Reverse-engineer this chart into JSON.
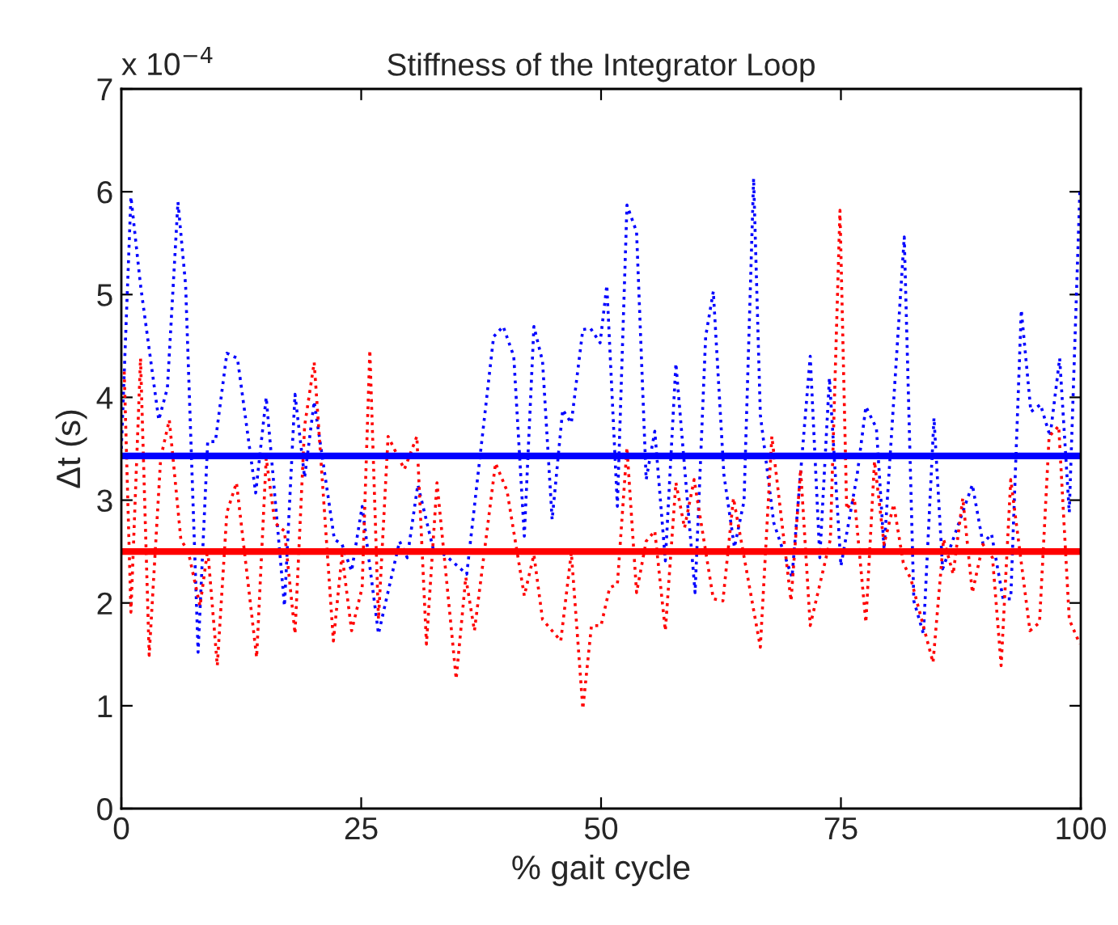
{
  "chart_data": {
    "type": "line",
    "title": "Stiffness of the Integrator Loop",
    "xlabel": "% gait cycle",
    "ylabel": "Δt (s)",
    "annotations": [
      "x 10$^{−4}$"
    ],
    "xlim": [
      0,
      100
    ],
    "xticks": [
      0,
      25,
      50,
      75,
      100
    ],
    "ylim": [
      0,
      7
    ],
    "yticks": [
      0,
      1,
      2,
      3,
      4,
      5,
      6,
      7
    ],
    "grid": false,
    "legend": false,
    "marker": "none",
    "series": [
      {
        "color": "#0000ff",
        "line_style": "dotted",
        "x": [
          0,
          1.0,
          2.0,
          3.9,
          4.8,
          5.9,
          6.7,
          8.0,
          9.0,
          9.8,
          11.0,
          12.1,
          14.0,
          15.1,
          17.0,
          18.1,
          19.1,
          20.1,
          22.2,
          23.0,
          24.0,
          25.1,
          26.8,
          29.0,
          29.8,
          30.9,
          32.6,
          33.7,
          36.0,
          38.8,
          39.8,
          40.9,
          42.0,
          43.0,
          43.9,
          44.9,
          46.0,
          46.9,
          48.1,
          48.9,
          49.9,
          50.6,
          51.7,
          52.7,
          53.7,
          54.7,
          55.6,
          56.7,
          57.8,
          59.8,
          60.9,
          61.7,
          62.8,
          63.9,
          64.9,
          65.9,
          66.6,
          68.0,
          69.9,
          71.8,
          72.8,
          73.8,
          75.0,
          76.7,
          77.6,
          78.7,
          79.5,
          81.6,
          82.6,
          83.6,
          84.7,
          85.6,
          86.7,
          88.7,
          89.8,
          90.7,
          91.9,
          92.7,
          93.8,
          94.8,
          95.8,
          96.8,
          97.8,
          98.8,
          99.9
        ],
        "values": [
          3.5,
          5.95,
          5.09,
          3.78,
          4.09,
          5.9,
          5.09,
          1.52,
          3.57,
          3.57,
          4.43,
          4.38,
          3.07,
          4.0,
          1.97,
          4.03,
          3.22,
          3.96,
          2.62,
          2.57,
          2.31,
          2.94,
          1.7,
          2.6,
          2.44,
          3.15,
          2.49,
          2.47,
          2.28,
          4.59,
          4.69,
          4.4,
          2.65,
          4.69,
          4.35,
          2.81,
          3.88,
          3.75,
          4.66,
          4.67,
          4.53,
          5.09,
          2.94,
          5.87,
          5.61,
          3.2,
          3.67,
          2.41,
          4.33,
          2.1,
          4.59,
          5.03,
          3.25,
          2.54,
          2.99,
          6.13,
          3.83,
          2.78,
          2.25,
          4.4,
          2.44,
          4.19,
          2.36,
          3.25,
          3.91,
          3.7,
          2.52,
          5.56,
          2.02,
          1.7,
          3.8,
          2.33,
          2.62,
          3.15,
          2.58,
          2.67,
          2.04,
          2.04,
          4.85,
          3.86,
          3.93,
          3.62,
          4.38,
          2.88,
          6.0
        ]
      },
      {
        "color": "#ff0000",
        "line_style": "dotted",
        "x": [
          0.3,
          1.0,
          2.0,
          2.9,
          4.1,
          5.0,
          6.2,
          7.0,
          8.2,
          9.0,
          10.0,
          11.0,
          12.0,
          14.1,
          15.1,
          16.0,
          17.0,
          18.1,
          19.1,
          20.1,
          22.1,
          23.0,
          24.0,
          25.1,
          25.9,
          26.8,
          27.8,
          29.5,
          30.8,
          31.8,
          32.9,
          33.7,
          34.9,
          35.9,
          36.8,
          39.0,
          40.2,
          42.0,
          43.0,
          43.9,
          45.8,
          46.9,
          48.1,
          49.0,
          50.0,
          50.9,
          51.7,
          52.7,
          53.7,
          54.7,
          55.6,
          56.7,
          57.8,
          58.7,
          59.7,
          61.7,
          62.7,
          63.8,
          66.6,
          67.8,
          69.8,
          70.8,
          71.8,
          73.9,
          74.9,
          75.6,
          76.4,
          77.6,
          78.5,
          79.5,
          80.5,
          81.5,
          82.3,
          84.6,
          85.7,
          86.7,
          87.7,
          88.7,
          89.8,
          90.8,
          91.7,
          92.7,
          94.7,
          95.7,
          96.7,
          97.7,
          98.8,
          99.9
        ],
        "values": [
          4.25,
          1.91,
          4.38,
          1.49,
          3.41,
          3.78,
          2.62,
          2.49,
          1.97,
          2.52,
          1.39,
          2.88,
          3.17,
          1.47,
          3.41,
          2.78,
          2.7,
          1.7,
          3.72,
          4.34,
          1.63,
          2.47,
          1.73,
          2.15,
          4.46,
          1.84,
          3.62,
          3.3,
          3.62,
          1.6,
          3.17,
          2.41,
          1.26,
          2.25,
          1.73,
          3.36,
          3.09,
          2.07,
          2.47,
          1.84,
          1.63,
          2.49,
          0.97,
          1.78,
          1.78,
          2.15,
          2.18,
          3.51,
          2.1,
          2.6,
          2.7,
          1.73,
          3.17,
          2.73,
          3.2,
          2.04,
          2.02,
          3.02,
          1.57,
          3.62,
          2.02,
          3.3,
          1.78,
          2.62,
          5.82,
          2.91,
          3.02,
          1.81,
          3.38,
          2.57,
          2.96,
          2.39,
          2.23,
          1.42,
          2.62,
          2.28,
          3.02,
          2.1,
          2.57,
          2.44,
          1.39,
          3.2,
          1.73,
          1.81,
          3.62,
          3.72,
          1.84,
          1.6
        ]
      },
      {
        "color": "#0000ff",
        "line_style": "solid",
        "x": [
          0,
          100
        ],
        "values": [
          3.43,
          3.43
        ]
      },
      {
        "color": "#ff0000",
        "line_style": "solid",
        "x": [
          0,
          100
        ],
        "values": [
          2.5,
          2.5
        ]
      }
    ]
  }
}
